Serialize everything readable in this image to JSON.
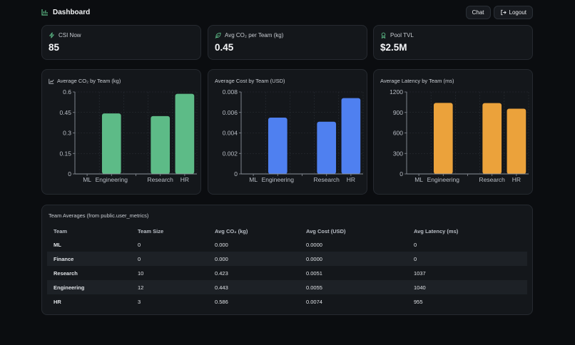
{
  "header": {
    "title": "Dashboard",
    "chat_label": "Chat",
    "logout_label": "Logout"
  },
  "kpis": [
    {
      "label": "CSI Now",
      "value": "85",
      "icon": "zap-icon"
    },
    {
      "label": "Avg CO₂ per Team (kg)",
      "value": "0.45",
      "icon": "leaf-icon"
    },
    {
      "label": "Pool TVL",
      "value": "$2.5M",
      "icon": "award-icon"
    }
  ],
  "colors": {
    "co2": "#5dbb87",
    "cost": "#4f80f0",
    "latency": "#eba23b",
    "grid": "#2a2f36",
    "axis": "#8a9099"
  },
  "chart_data": [
    {
      "type": "bar",
      "title": "Average CO₂ by Team (kg)",
      "categories": [
        "ML",
        "Engineering",
        "Finance",
        "Research",
        "HR"
      ],
      "category_labels": [
        "ML",
        "Engineering",
        "",
        "Research",
        "HR"
      ],
      "values": [
        0,
        0.443,
        0,
        0.423,
        0.586
      ],
      "ylim": [
        0,
        0.6
      ],
      "yticks": [
        "0",
        "0.15",
        "0.3",
        "0.45",
        "0.6"
      ],
      "grid": true
    },
    {
      "type": "bar",
      "title": "Average Cost by Team (USD)",
      "categories": [
        "ML",
        "Engineering",
        "Finance",
        "Research",
        "HR"
      ],
      "category_labels": [
        "ML",
        "Engineering",
        "",
        "Research",
        "HR"
      ],
      "values": [
        0,
        0.0055,
        0,
        0.0051,
        0.0074
      ],
      "ylim": [
        0,
        0.008
      ],
      "yticks": [
        "0",
        "0.002",
        "0.004",
        "0.006",
        "0.008"
      ],
      "grid": true
    },
    {
      "type": "bar",
      "title": "Average Latency by Team (ms)",
      "categories": [
        "ML",
        "Engineering",
        "Finance",
        "Research",
        "HR"
      ],
      "category_labels": [
        "ML",
        "Engineering",
        "",
        "Research",
        "HR"
      ],
      "values": [
        0,
        1040,
        0,
        1037,
        955
      ],
      "ylim": [
        0,
        1200
      ],
      "yticks": [
        "0",
        "300",
        "600",
        "900",
        "1200"
      ],
      "grid": true
    }
  ],
  "table": {
    "title": "Team Averages (from public.user_metrics)",
    "columns": [
      "Team",
      "Team Size",
      "Avg CO₂ (kg)",
      "Avg Cost (USD)",
      "Avg Latency (ms)"
    ],
    "rows": [
      [
        "ML",
        "0",
        "0.000",
        "0.0000",
        "0"
      ],
      [
        "Finance",
        "0",
        "0.000",
        "0.0000",
        "0"
      ],
      [
        "Research",
        "10",
        "0.423",
        "0.0051",
        "1037"
      ],
      [
        "Engineering",
        "12",
        "0.443",
        "0.0055",
        "1040"
      ],
      [
        "HR",
        "3",
        "0.586",
        "0.0074",
        "955"
      ]
    ]
  }
}
